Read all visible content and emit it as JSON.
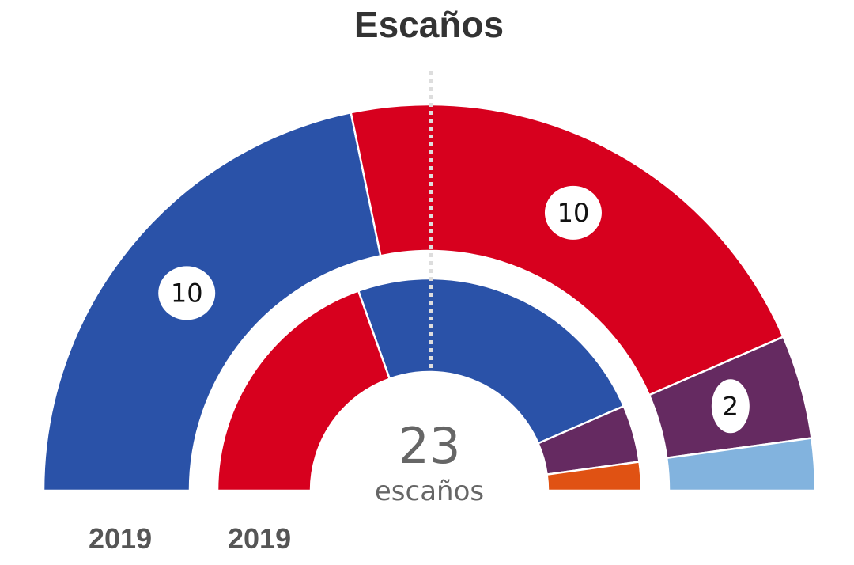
{
  "title": "Escaños",
  "total": {
    "value": "23",
    "unit": "escaños"
  },
  "chart_data": {
    "type": "pie",
    "subtype": "hemicycle",
    "title": "Escaños",
    "total_seats": 23,
    "majority_line": true,
    "rings": [
      {
        "name": "2019",
        "ring": "outer",
        "segments": [
          {
            "seats": 10,
            "color": "#2a52a8",
            "label": "10"
          },
          {
            "seats": 10,
            "color": "#d7001e",
            "label": "10"
          },
          {
            "seats": 2,
            "color": "#652a61",
            "label": "2"
          },
          {
            "seats": 1,
            "color": "#82b3de",
            "label": ""
          }
        ]
      },
      {
        "name": "2019",
        "ring": "inner",
        "segments": [
          {
            "seats": 9,
            "color": "#d7001e",
            "label": ""
          },
          {
            "seats": 11,
            "color": "#2a52a8",
            "label": ""
          },
          {
            "seats": 2,
            "color": "#652a61",
            "label": ""
          },
          {
            "seats": 1,
            "color": "#e05213",
            "label": ""
          }
        ]
      }
    ]
  }
}
